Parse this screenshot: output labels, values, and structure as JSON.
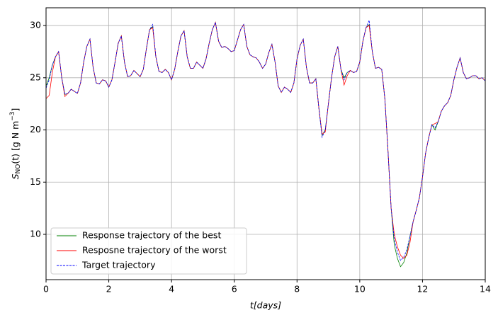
{
  "chart_data": {
    "type": "line",
    "xlabel": "t[days]",
    "ylabel": {
      "main": "S",
      "sub": "NO",
      "rest": "(t) [g N m",
      "sup": "−3",
      "end": "]"
    },
    "xlim": [
      0,
      14
    ],
    "ylim": [
      5.66,
      31.7
    ],
    "xticks": [
      0,
      2,
      4,
      6,
      8,
      10,
      12,
      14
    ],
    "yticks": [
      10,
      15,
      20,
      25,
      30
    ],
    "grid": true,
    "legend": "lower left",
    "x": [
      0,
      0.1,
      0.2,
      0.3,
      0.4,
      0.5,
      0.6,
      0.7,
      0.8,
      0.9,
      1,
      1.1,
      1.2,
      1.3,
      1.4,
      1.5,
      1.6,
      1.7,
      1.8,
      1.9,
      2,
      2.1,
      2.2,
      2.3,
      2.4,
      2.5,
      2.6,
      2.7,
      2.8,
      2.9,
      3,
      3.1,
      3.2,
      3.3,
      3.4,
      3.5,
      3.6,
      3.7,
      3.8,
      3.9,
      4,
      4.1,
      4.2,
      4.3,
      4.4,
      4.5,
      4.6,
      4.7,
      4.8,
      4.9,
      5,
      5.1,
      5.2,
      5.3,
      5.4,
      5.5,
      5.6,
      5.7,
      5.8,
      5.9,
      6,
      6.1,
      6.2,
      6.3,
      6.4,
      6.5,
      6.6,
      6.7,
      6.8,
      6.9,
      7,
      7.1,
      7.2,
      7.3,
      7.4,
      7.5,
      7.6,
      7.7,
      7.8,
      7.9,
      8,
      8.1,
      8.2,
      8.3,
      8.4,
      8.5,
      8.6,
      8.7,
      8.8,
      8.9,
      9,
      9.1,
      9.2,
      9.3,
      9.4,
      9.5,
      9.6,
      9.7,
      9.8,
      9.9,
      10,
      10.1,
      10.2,
      10.3,
      10.4,
      10.5,
      10.6,
      10.7,
      10.8,
      10.9,
      11,
      11.1,
      11.2,
      11.3,
      11.4,
      11.5,
      11.6,
      11.7,
      11.8,
      11.9,
      12,
      12.1,
      12.2,
      12.3,
      12.4,
      12.5,
      12.6,
      12.7,
      12.8,
      12.9,
      13,
      13.1,
      13.2,
      13.3,
      13.4,
      13.5,
      13.6,
      13.7,
      13.8,
      13.9,
      14
    ],
    "series": [
      {
        "name": "Response trajectory of the best",
        "color": "#008000",
        "dash": false,
        "values": [
          24.2,
          25.0,
          26.2,
          27.0,
          27.5,
          25.0,
          23.4,
          23.5,
          23.9,
          23.7,
          23.5,
          24.5,
          26.5,
          28.0,
          28.7,
          26.0,
          24.5,
          24.4,
          24.8,
          24.7,
          24.1,
          24.8,
          26.5,
          28.3,
          29.0,
          26.5,
          25.1,
          25.2,
          25.7,
          25.4,
          25.1,
          25.8,
          27.8,
          29.6,
          29.9,
          27.0,
          25.6,
          25.5,
          25.8,
          25.5,
          24.8,
          25.8,
          27.5,
          29.0,
          29.5,
          27.0,
          25.9,
          25.9,
          26.5,
          26.2,
          25.9,
          26.8,
          28.3,
          29.6,
          30.3,
          28.5,
          27.9,
          28.0,
          27.8,
          27.5,
          27.6,
          28.6,
          29.6,
          30.1,
          28.0,
          27.2,
          27.0,
          26.9,
          26.5,
          25.9,
          26.3,
          27.4,
          28.2,
          26.5,
          24.2,
          23.6,
          24.1,
          23.9,
          23.6,
          24.5,
          26.8,
          28.1,
          28.7,
          26.0,
          24.5,
          24.5,
          24.9,
          22.0,
          19.5,
          20.0,
          22.5,
          25.0,
          27.0,
          28.0,
          25.8,
          25.0,
          25.5,
          25.7,
          25.5,
          25.6,
          26.5,
          28.5,
          29.8,
          30.1,
          27.5,
          25.9,
          26.0,
          25.8,
          23.0,
          18.0,
          12.5,
          9.0,
          7.7,
          6.9,
          7.3,
          8.2,
          9.8,
          11.2,
          12.3,
          13.5,
          15.5,
          17.8,
          19.3,
          20.5,
          20.0,
          20.8,
          21.8,
          22.3,
          22.6,
          23.3,
          24.8,
          26.0,
          26.9,
          25.5,
          24.9,
          25.0,
          25.2,
          25.2,
          24.9,
          25.0,
          24.7
        ]
      },
      {
        "name": "Resposne trajectory of the worst",
        "color": "#ff0000",
        "dash": false,
        "values": [
          23.0,
          23.3,
          25.5,
          27.0,
          27.5,
          25.0,
          23.2,
          23.5,
          23.9,
          23.7,
          23.5,
          24.5,
          26.5,
          28.0,
          28.7,
          26.0,
          24.5,
          24.4,
          24.8,
          24.7,
          24.1,
          24.8,
          26.5,
          28.3,
          29.0,
          26.5,
          25.1,
          25.2,
          25.7,
          25.4,
          25.1,
          25.8,
          27.8,
          29.6,
          29.8,
          27.0,
          25.6,
          25.5,
          25.8,
          25.5,
          24.8,
          25.8,
          27.5,
          29.0,
          29.5,
          27.0,
          25.9,
          25.9,
          26.5,
          26.2,
          25.9,
          26.8,
          28.3,
          29.6,
          30.3,
          28.5,
          27.9,
          28.0,
          27.8,
          27.5,
          27.6,
          28.6,
          29.6,
          30.1,
          28.0,
          27.2,
          27.0,
          26.9,
          26.5,
          25.9,
          26.3,
          27.4,
          28.2,
          26.5,
          24.2,
          23.6,
          24.1,
          23.9,
          23.6,
          24.5,
          26.8,
          28.1,
          28.7,
          26.0,
          24.5,
          24.5,
          24.9,
          22.0,
          19.6,
          19.8,
          22.5,
          25.0,
          27.0,
          28.0,
          25.8,
          24.3,
          25.2,
          25.7,
          25.5,
          25.6,
          26.5,
          28.5,
          29.8,
          30.0,
          27.5,
          25.9,
          26.0,
          25.8,
          23.0,
          18.0,
          12.5,
          10.0,
          8.8,
          8.0,
          7.7,
          8.0,
          9.2,
          11.2,
          12.3,
          13.5,
          15.5,
          17.8,
          19.3,
          20.5,
          20.6,
          20.8,
          21.8,
          22.3,
          22.6,
          23.3,
          24.8,
          26.0,
          26.9,
          25.5,
          24.9,
          25.0,
          25.2,
          25.2,
          24.9,
          25.0,
          24.7
        ]
      },
      {
        "name": "Target trajectory",
        "color": "#0000ff",
        "dash": true,
        "values": [
          24.0,
          24.8,
          26.2,
          27.0,
          27.5,
          25.0,
          23.4,
          23.5,
          23.9,
          23.7,
          23.5,
          24.5,
          26.5,
          28.0,
          28.7,
          26.0,
          24.5,
          24.4,
          24.8,
          24.7,
          24.1,
          24.8,
          26.5,
          28.3,
          29.0,
          26.5,
          25.1,
          25.2,
          25.7,
          25.4,
          25.1,
          25.8,
          27.8,
          29.6,
          30.1,
          27.0,
          25.6,
          25.5,
          25.8,
          25.5,
          24.8,
          25.8,
          27.5,
          29.0,
          29.5,
          27.0,
          25.9,
          25.9,
          26.5,
          26.2,
          25.9,
          26.8,
          28.3,
          29.6,
          30.3,
          28.5,
          27.9,
          28.0,
          27.8,
          27.5,
          27.6,
          28.6,
          29.6,
          30.1,
          28.0,
          27.2,
          27.0,
          26.9,
          26.5,
          25.9,
          26.3,
          27.4,
          28.2,
          26.5,
          24.2,
          23.6,
          24.1,
          23.9,
          23.6,
          24.5,
          26.8,
          28.1,
          28.7,
          26.0,
          24.5,
          24.5,
          24.9,
          22.0,
          19.3,
          20.0,
          22.5,
          25.0,
          27.0,
          28.0,
          25.8,
          24.8,
          25.5,
          25.7,
          25.5,
          25.6,
          26.5,
          28.5,
          29.8,
          30.5,
          27.5,
          25.9,
          26.0,
          25.8,
          23.0,
          18.0,
          12.5,
          9.5,
          8.3,
          7.5,
          7.8,
          8.5,
          9.8,
          11.2,
          12.3,
          13.5,
          15.5,
          17.8,
          19.3,
          20.5,
          20.2,
          20.8,
          21.8,
          22.3,
          22.6,
          23.3,
          24.8,
          26.0,
          26.9,
          25.5,
          24.9,
          25.0,
          25.2,
          25.2,
          24.9,
          25.0,
          24.7
        ]
      }
    ]
  }
}
